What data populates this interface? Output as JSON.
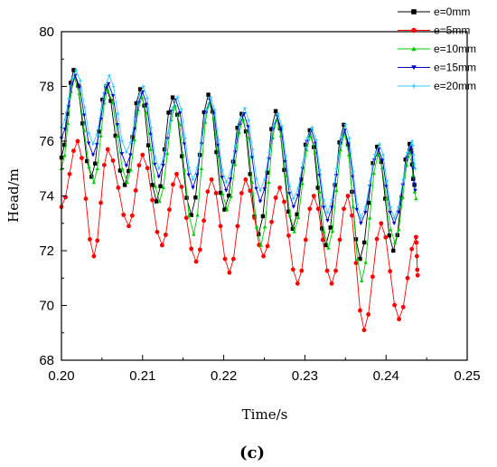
{
  "chart_data": {
    "type": "line",
    "panel_label": "(c)",
    "xlabel": "Time/s",
    "ylabel": "Head/m",
    "xlim": [
      0.2,
      0.25
    ],
    "ylim": [
      68,
      80
    ],
    "x_ticks": [
      0.2,
      0.21,
      0.22,
      0.23,
      0.24,
      0.25
    ],
    "x_tick_labels": [
      "0.20",
      "0.21",
      "0.22",
      "0.23",
      "0.24",
      "0.25"
    ],
    "y_ticks": [
      68,
      70,
      72,
      74,
      76,
      78,
      80
    ],
    "y_tick_labels": [
      "68",
      "70",
      "72",
      "74",
      "76",
      "78",
      "80"
    ],
    "grid": false,
    "legend_position": "top-right",
    "series": [
      {
        "name": "e=0mm",
        "color": "#000000",
        "marker": "square",
        "peaks": [
          [
            0.2015,
            78.6
          ],
          [
            0.2055,
            78.0
          ],
          [
            0.2097,
            77.9
          ],
          [
            0.2137,
            77.6
          ],
          [
            0.2181,
            77.7
          ],
          [
            0.2222,
            77.0
          ],
          [
            0.2264,
            77.1
          ],
          [
            0.2306,
            76.4
          ],
          [
            0.2348,
            76.6
          ],
          [
            0.2389,
            75.8
          ],
          [
            0.2429,
            75.9
          ]
        ],
        "troughs": [
          [
            0.2,
            75.4
          ],
          [
            0.2037,
            74.7
          ],
          [
            0.2078,
            74.4
          ],
          [
            0.2117,
            73.8
          ],
          [
            0.216,
            73.3
          ],
          [
            0.2201,
            73.5
          ],
          [
            0.2243,
            72.6
          ],
          [
            0.2285,
            72.8
          ],
          [
            0.2326,
            72.2
          ],
          [
            0.2368,
            71.7
          ],
          [
            0.2409,
            72.0
          ],
          [
            0.2435,
            74.4
          ]
        ]
      },
      {
        "name": "e=5mm",
        "color": "#ff0000",
        "marker": "circle",
        "peaks": [
          [
            0.202,
            76.0
          ],
          [
            0.2057,
            75.7
          ],
          [
            0.21,
            75.5
          ],
          [
            0.2142,
            74.8
          ],
          [
            0.2185,
            74.6
          ],
          [
            0.2227,
            74.6
          ],
          [
            0.2269,
            74.3
          ],
          [
            0.2311,
            74.0
          ],
          [
            0.2353,
            74.0
          ],
          [
            0.2394,
            73.0
          ],
          [
            0.2437,
            72.5
          ]
        ],
        "troughs": [
          [
            0.2,
            73.6
          ],
          [
            0.204,
            71.8
          ],
          [
            0.2083,
            72.9
          ],
          [
            0.2124,
            72.2
          ],
          [
            0.2166,
            71.6
          ],
          [
            0.2207,
            71.2
          ],
          [
            0.2249,
            71.8
          ],
          [
            0.2291,
            70.8
          ],
          [
            0.2333,
            70.8
          ],
          [
            0.2373,
            69.1
          ],
          [
            0.2416,
            69.5
          ],
          [
            0.2439,
            71.1
          ]
        ]
      },
      {
        "name": "e=10mm",
        "color": "#00cc00",
        "marker": "triangle-up",
        "peaks": [
          [
            0.2016,
            78.3
          ],
          [
            0.2057,
            77.9
          ],
          [
            0.2099,
            77.6
          ],
          [
            0.214,
            77.3
          ],
          [
            0.2182,
            77.4
          ],
          [
            0.2224,
            76.8
          ],
          [
            0.2265,
            76.8
          ],
          [
            0.2307,
            76.2
          ],
          [
            0.2349,
            76.3
          ],
          [
            0.239,
            75.5
          ],
          [
            0.243,
            75.6
          ]
        ],
        "troughs": [
          [
            0.2,
            75.0
          ],
          [
            0.204,
            74.5
          ],
          [
            0.2081,
            74.5
          ],
          [
            0.2121,
            73.8
          ],
          [
            0.2163,
            72.6
          ],
          [
            0.2204,
            73.5
          ],
          [
            0.2246,
            72.2
          ],
          [
            0.2287,
            72.7
          ],
          [
            0.2329,
            72.1
          ],
          [
            0.237,
            70.9
          ],
          [
            0.2411,
            72.3
          ],
          [
            0.2437,
            73.9
          ]
        ]
      },
      {
        "name": "e=15mm",
        "color": "#0000cc",
        "marker": "triangle-down",
        "peaks": [
          [
            0.2017,
            78.4
          ],
          [
            0.2058,
            78.1
          ],
          [
            0.21,
            77.8
          ],
          [
            0.2141,
            77.5
          ],
          [
            0.2183,
            77.5
          ],
          [
            0.2225,
            77.0
          ],
          [
            0.2266,
            76.9
          ],
          [
            0.2308,
            76.4
          ],
          [
            0.2349,
            76.4
          ],
          [
            0.2391,
            75.7
          ],
          [
            0.2431,
            75.8
          ]
        ],
        "troughs": [
          [
            0.2,
            76.1
          ],
          [
            0.2039,
            75.5
          ],
          [
            0.208,
            75.1
          ],
          [
            0.212,
            74.7
          ],
          [
            0.2162,
            74.3
          ],
          [
            0.2203,
            74.2
          ],
          [
            0.2245,
            73.8
          ],
          [
            0.2286,
            73.6
          ],
          [
            0.2328,
            73.1
          ],
          [
            0.2369,
            73.0
          ],
          [
            0.241,
            73.0
          ],
          [
            0.2436,
            74.2
          ]
        ]
      },
      {
        "name": "e=20mm",
        "color": "#33ccff",
        "marker": "star",
        "peaks": [
          [
            0.2018,
            78.6
          ],
          [
            0.2059,
            78.4
          ],
          [
            0.2101,
            78.0
          ],
          [
            0.2143,
            77.6
          ],
          [
            0.2184,
            77.6
          ],
          [
            0.2226,
            77.2
          ],
          [
            0.2267,
            77.0
          ],
          [
            0.2309,
            76.5
          ],
          [
            0.235,
            76.6
          ],
          [
            0.2392,
            75.9
          ],
          [
            0.2432,
            76.0
          ]
        ],
        "troughs": [
          [
            0.2,
            76.5
          ],
          [
            0.2039,
            75.9
          ],
          [
            0.208,
            75.6
          ],
          [
            0.212,
            75.0
          ],
          [
            0.2162,
            74.6
          ],
          [
            0.2203,
            74.5
          ],
          [
            0.2245,
            74.2
          ],
          [
            0.2286,
            73.9
          ],
          [
            0.2328,
            73.4
          ],
          [
            0.2369,
            73.2
          ],
          [
            0.241,
            73.2
          ],
          [
            0.2436,
            75.0
          ]
        ]
      }
    ]
  }
}
